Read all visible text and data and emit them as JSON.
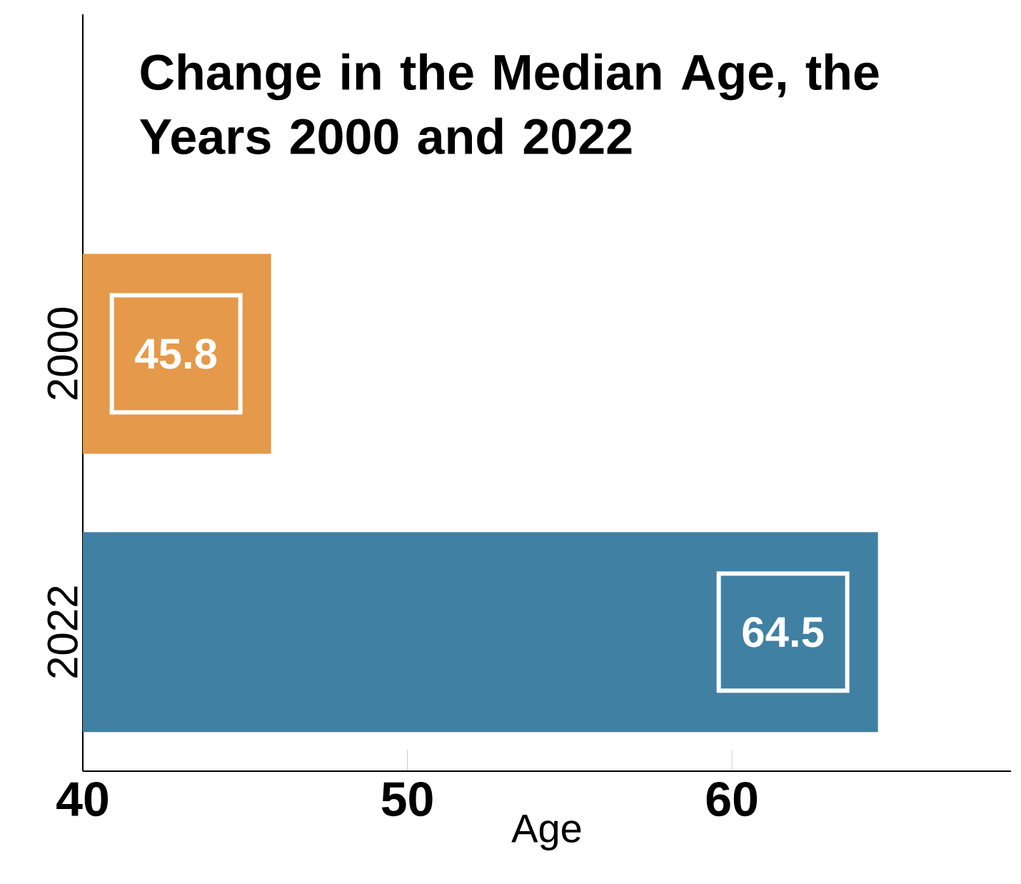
{
  "chart_data": {
    "type": "bar",
    "orientation": "horizontal",
    "title": "Change in the Median Age, the Years 2000 and 2022",
    "xlabel": "Age",
    "categories": [
      "2000",
      "2022"
    ],
    "values": [
      45.8,
      64.5
    ],
    "colors": [
      "#e5994a",
      "#4080a3"
    ],
    "xlim": [
      40,
      68.6
    ],
    "xticks": [
      40,
      50,
      60
    ],
    "data_labels": true
  }
}
